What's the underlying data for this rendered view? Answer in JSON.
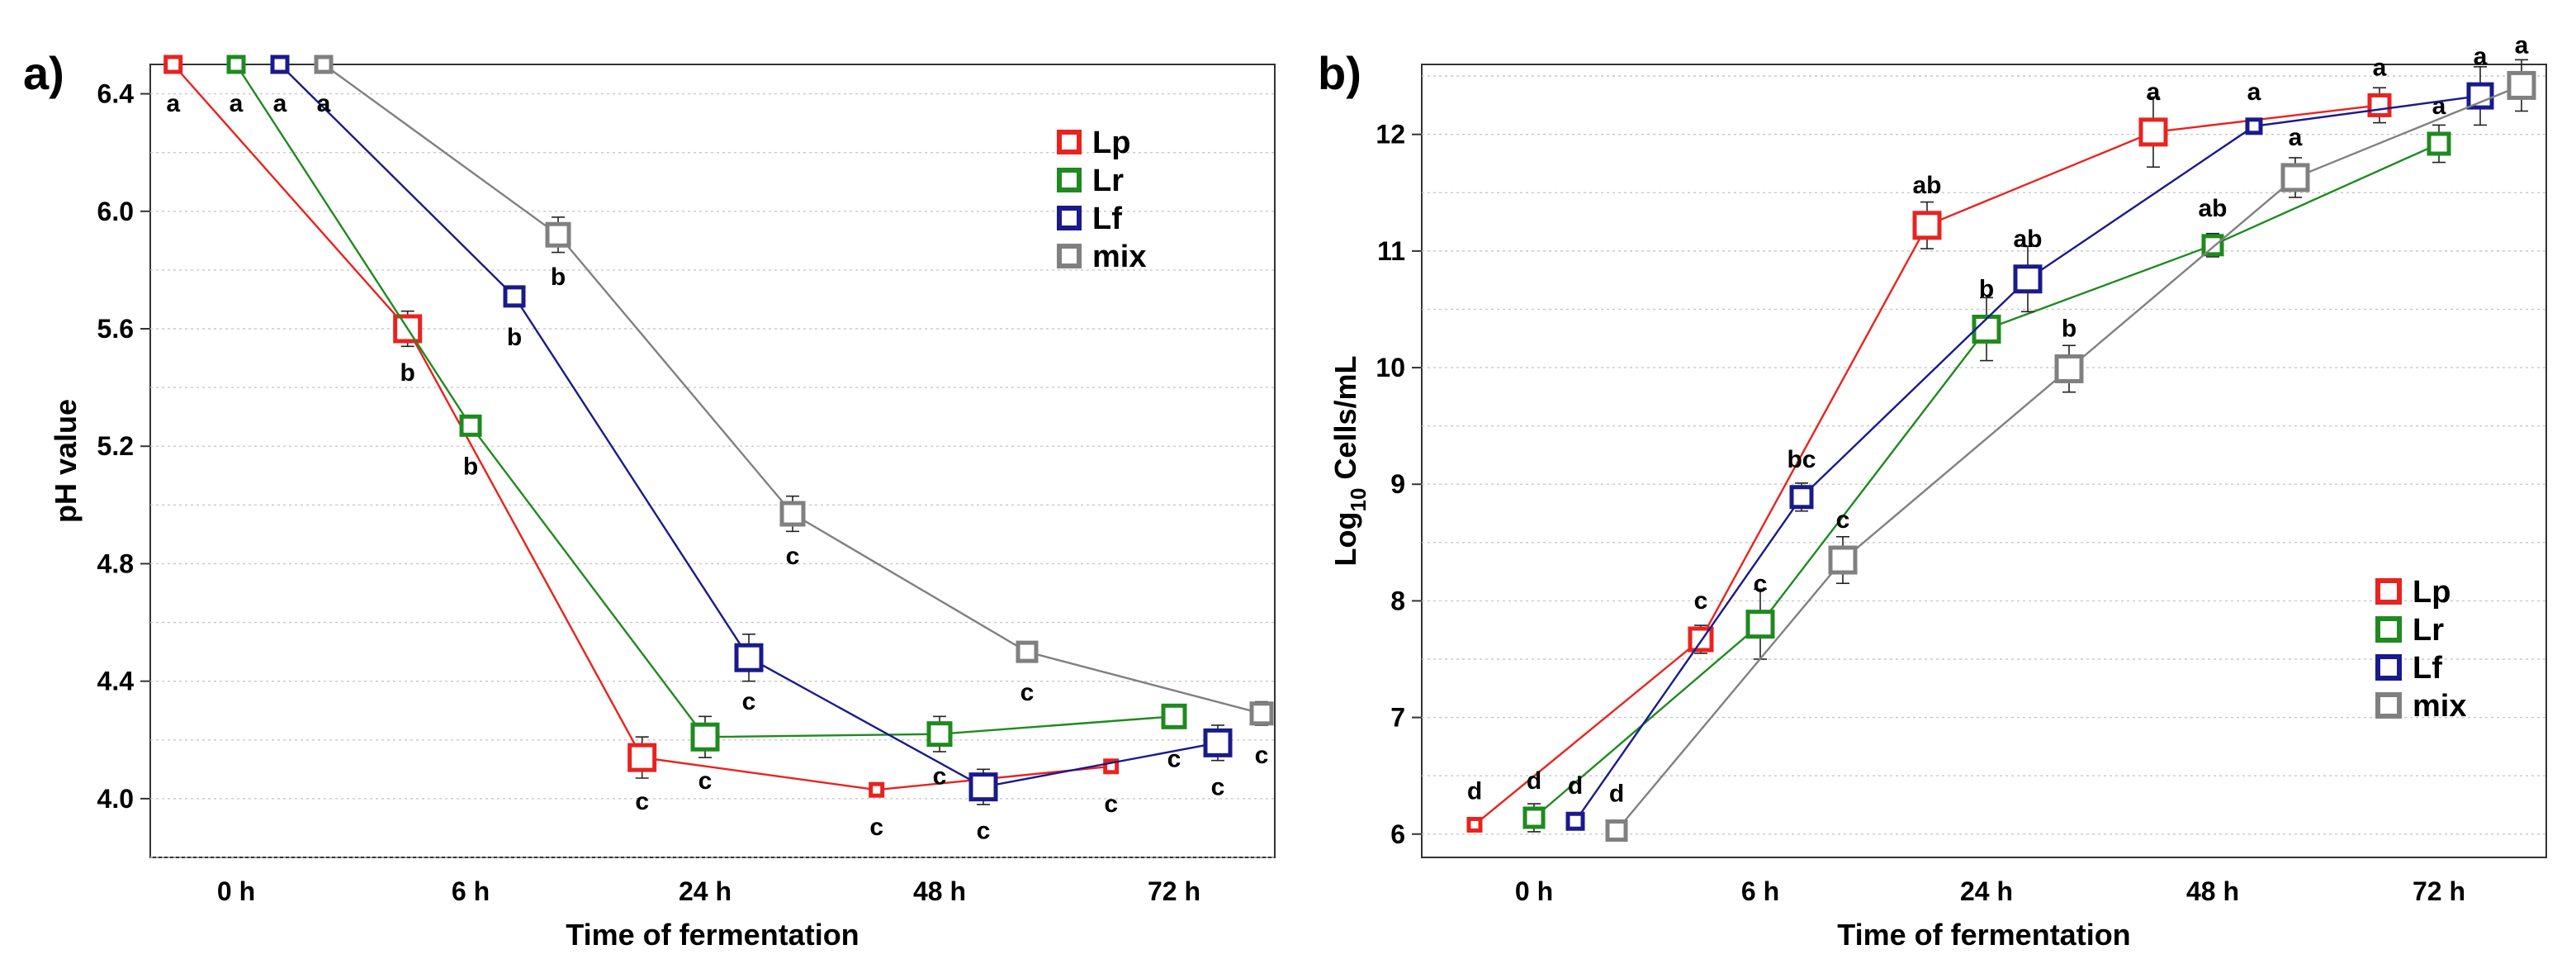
{
  "colors": {
    "Lp": "#e8231f",
    "Lr": "#1f8a1f",
    "Lf": "#1a1a8c",
    "mix": "#808080"
  },
  "chart_data": [
    {
      "type": "line",
      "panel_label": "a)",
      "xlabel": "Time of fermentation",
      "ylabel": "pH value",
      "categories": [
        "0 h",
        "6 h",
        "24 h",
        "48 h",
        "72 h"
      ],
      "ylim": [
        3.8,
        6.5
      ],
      "yticks": [
        "4.0",
        "4.4",
        "4.8",
        "5.2",
        "5.6",
        "6.0",
        "6.4"
      ],
      "grid": true,
      "legend_position": "top-right",
      "series": [
        {
          "name": "Lp",
          "color": "#e8231f",
          "values": [
            6.5,
            5.6,
            4.14,
            4.03,
            4.11
          ],
          "errors": [
            0.0,
            0.06,
            0.07,
            0.01,
            0.01
          ],
          "letters": [
            "a",
            "b",
            "c",
            "c",
            "c"
          ]
        },
        {
          "name": "Lr",
          "color": "#1f8a1f",
          "values": [
            6.5,
            5.27,
            4.21,
            4.22,
            4.28
          ],
          "errors": [
            0.0,
            0.02,
            0.07,
            0.06,
            0.04
          ],
          "letters": [
            "a",
            "b",
            "c",
            "c",
            "c"
          ]
        },
        {
          "name": "Lf",
          "color": "#1a1a8c",
          "values": [
            6.5,
            5.71,
            4.48,
            4.04,
            4.19
          ],
          "errors": [
            0.0,
            0.03,
            0.08,
            0.06,
            0.06
          ],
          "letters": [
            "a",
            "b",
            "c",
            "c",
            "c"
          ]
        },
        {
          "name": "mix",
          "color": "#808080",
          "values": [
            6.5,
            5.92,
            4.97,
            4.5,
            4.29
          ],
          "errors": [
            0.0,
            0.06,
            0.06,
            0.02,
            0.04
          ],
          "letters": [
            "a",
            "b",
            "c",
            "c",
            "c"
          ]
        }
      ]
    },
    {
      "type": "line",
      "panel_label": "b)",
      "xlabel": "Time of fermentation",
      "ylabel_main": "Log",
      "ylabel_sub": "10",
      "ylabel_rest": " Cells/mL",
      "categories": [
        "0 h",
        "6 h",
        "24 h",
        "48 h",
        "72 h"
      ],
      "ylim": [
        5.8,
        12.6
      ],
      "yticks": [
        "6",
        "7",
        "8",
        "9",
        "10",
        "11",
        "12"
      ],
      "grid": true,
      "legend_position": "bottom-right",
      "series": [
        {
          "name": "Lp",
          "color": "#e8231f",
          "values": [
            6.08,
            7.67,
            11.22,
            12.02,
            12.25
          ],
          "errors": [
            0.0,
            0.12,
            0.2,
            0.3,
            0.15
          ],
          "letters": [
            "d",
            "c",
            "ab",
            "a",
            "a"
          ]
        },
        {
          "name": "Lr",
          "color": "#1f8a1f",
          "values": [
            6.14,
            7.8,
            10.33,
            11.05,
            11.92
          ],
          "errors": [
            0.12,
            0.3,
            0.27,
            0.1,
            0.16
          ],
          "letters": [
            "d",
            "c",
            "b",
            "ab",
            "a"
          ]
        },
        {
          "name": "Lf",
          "color": "#1a1a8c",
          "values": [
            6.11,
            8.89,
            10.76,
            12.07,
            12.33
          ],
          "errors": [
            0.05,
            0.12,
            0.28,
            0.02,
            0.25
          ],
          "letters": [
            "d",
            "bc",
            "ab",
            "a",
            "a"
          ]
        },
        {
          "name": "mix",
          "color": "#808080",
          "values": [
            6.03,
            8.35,
            9.99,
            11.63,
            12.42
          ],
          "errors": [
            0.05,
            0.2,
            0.2,
            0.17,
            0.22
          ],
          "letters": [
            "d",
            "c",
            "b",
            "a",
            "a"
          ]
        }
      ]
    }
  ]
}
